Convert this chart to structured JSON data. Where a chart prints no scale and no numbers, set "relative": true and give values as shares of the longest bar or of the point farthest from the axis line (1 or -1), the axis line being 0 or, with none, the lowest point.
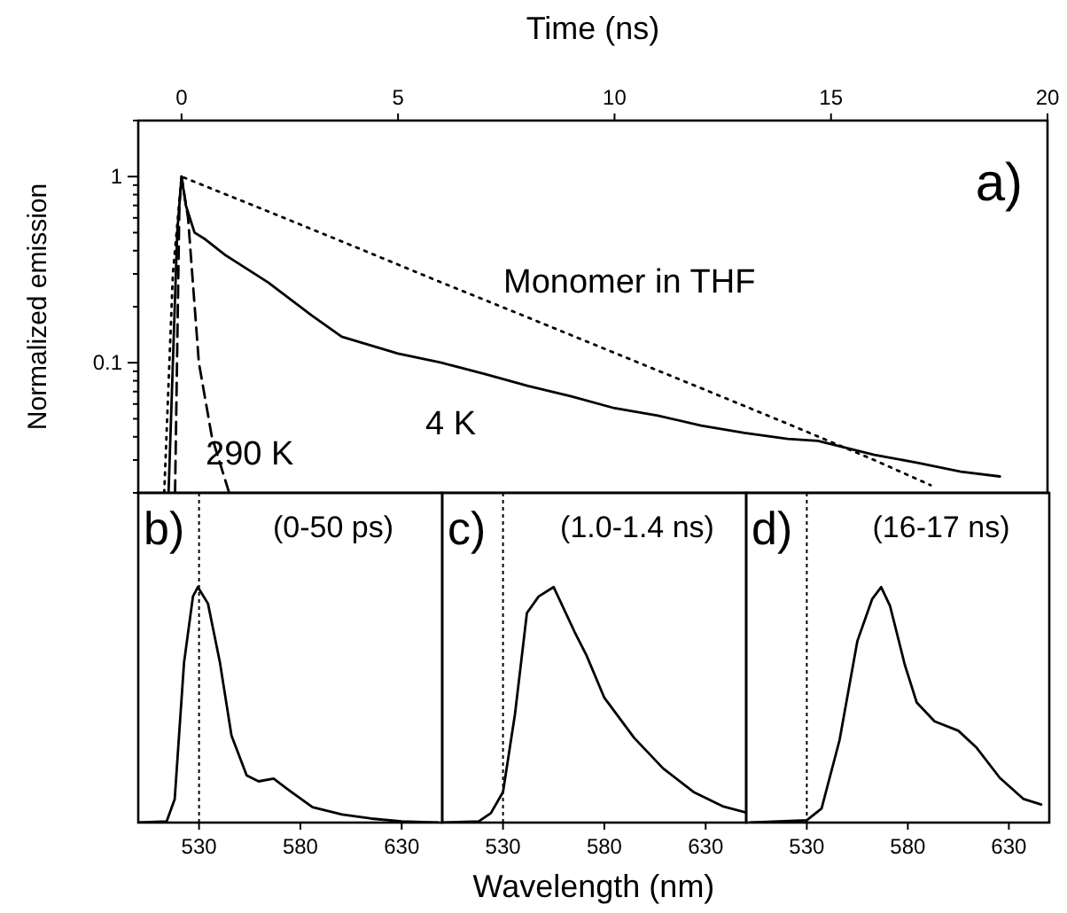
{
  "chart_data": [
    {
      "type": "line",
      "ylabel": "Normalized emission",
      "xlabel": "Time (ns)",
      "log": "y",
      "xlim": [
        -1,
        20
      ],
      "xticks": [
        0,
        5,
        10,
        15,
        20
      ],
      "ylim": [
        0.02,
        2
      ],
      "yticks": [
        {
          "value": 0.02,
          "label": null
        },
        {
          "value": 0.03,
          "label": null
        },
        {
          "value": 0.04,
          "label": null
        },
        {
          "value": 0.05,
          "label": null
        },
        {
          "value": 0.06,
          "label": null
        },
        {
          "value": 0.07,
          "label": null
        },
        {
          "value": 0.08,
          "label": null
        },
        {
          "value": 0.09,
          "label": null
        },
        0.1,
        {
          "value": 0.2,
          "label": null
        },
        {
          "value": 0.3,
          "label": null
        },
        {
          "value": 0.4,
          "label": null
        },
        {
          "value": 0.5,
          "label": null
        },
        {
          "value": 0.6,
          "label": null
        },
        {
          "value": 0.7,
          "label": null
        },
        {
          "value": 0.8,
          "label": null
        },
        {
          "value": 0.9,
          "label": null
        },
        1,
        {
          "value": 2,
          "label": null
        }
      ],
      "annotations": [
        "a)"
      ],
      "series": [
        {
          "name": "4 K",
          "color": "#000000",
          "line_style": "solid",
          "x": [
            -0.3,
            -0.2,
            -0.1,
            0,
            0.1,
            0.3,
            0.55,
            1,
            2,
            3,
            3.7,
            5,
            6,
            7,
            8,
            9,
            10,
            11,
            12,
            13,
            14,
            14.7,
            16,
            17,
            18,
            18.9
          ],
          "values": [
            0.02,
            0.1,
            0.5,
            1,
            0.7,
            0.5,
            0.46,
            0.38,
            0.27,
            0.18,
            0.138,
            0.112,
            0.1,
            0.087,
            0.075,
            0.066,
            0.057,
            0.052,
            0.046,
            0.042,
            0.039,
            0.038,
            0.032,
            0.029,
            0.026,
            0.0245
          ]
        },
        {
          "name": "290 K",
          "color": "#000000",
          "line_style": "dashed",
          "x": [
            -0.15,
            -0.05,
            0,
            0.15,
            0.4,
            0.7,
            1.1
          ],
          "values": [
            0.02,
            0.7,
            1,
            0.6,
            0.1,
            0.04,
            0.02
          ]
        },
        {
          "name": "Monomer in THF",
          "color": "#000000",
          "line_style": "dotted",
          "x": [
            -0.4,
            -0.2,
            0,
            2,
            4,
            6,
            8,
            10,
            12,
            14,
            16,
            17.3
          ],
          "values": [
            0.02,
            0.3,
            1,
            0.65,
            0.42,
            0.27,
            0.175,
            0.113,
            0.073,
            0.047,
            0.03,
            0.022
          ]
        }
      ]
    },
    {
      "type": "line",
      "relative": true,
      "xlim": [
        500,
        650
      ],
      "xticks": [
        530,
        580,
        630
      ],
      "annotations": [
        "b)",
        "(0-50 ps)"
      ],
      "ref_lines": [
        {
          "axis": "x",
          "value": 530,
          "line_style": "dotted"
        }
      ],
      "series": [
        {
          "color": "#000000",
          "x": [
            500,
            514,
            518,
            522.6,
            527,
            529.4,
            534.4,
            540.3,
            546,
            553.5,
            559.4,
            566.8,
            574,
            586,
            600.6,
            615,
            630,
            648
          ],
          "values": [
            0,
            0.005,
            0.1,
            0.68,
            0.96,
            1,
            0.93,
            0.68,
            0.37,
            0.2,
            0.175,
            0.187,
            0.14,
            0.065,
            0.034,
            0.017,
            0.005,
            0
          ]
        }
      ]
    },
    {
      "type": "line",
      "relative": true,
      "xlim": [
        500,
        650
      ],
      "xticks": [
        530,
        580,
        630
      ],
      "xlabel": "Wavelength (nm)",
      "annotations": [
        "c)",
        "(1.0-1.4 ns)"
      ],
      "ref_lines": [
        {
          "axis": "x",
          "value": 530,
          "line_style": "dotted"
        }
      ],
      "series": [
        {
          "color": "#000000",
          "x": [
            500.6,
            518,
            524,
            530,
            535.9,
            541.8,
            547.6,
            555,
            565.3,
            571.2,
            580,
            594.7,
            609,
            624,
            638.8,
            650
          ],
          "values": [
            0,
            0.005,
            0.04,
            0.13,
            0.46,
            0.89,
            0.96,
            1,
            0.81,
            0.71,
            0.53,
            0.36,
            0.23,
            0.13,
            0.068,
            0.043
          ]
        }
      ]
    },
    {
      "type": "line",
      "relative": true,
      "xlim": [
        500,
        650
      ],
      "xticks": [
        530,
        580,
        630
      ],
      "annotations": [
        "d)",
        "(16-17 ns)"
      ],
      "ref_lines": [
        {
          "axis": "x",
          "value": 530,
          "line_style": "dotted"
        }
      ],
      "series": [
        {
          "color": "#000000",
          "x": [
            502,
            530,
            537.3,
            546.2,
            555,
            562.4,
            566.8,
            571.2,
            578.5,
            584.4,
            593.2,
            605,
            613.8,
            625.5,
            637.3,
            646
          ],
          "values": [
            0,
            0.01,
            0.06,
            0.35,
            0.77,
            0.95,
            1,
            0.92,
            0.67,
            0.51,
            0.43,
            0.39,
            0.32,
            0.19,
            0.1,
            0.077
          ]
        }
      ]
    }
  ]
}
